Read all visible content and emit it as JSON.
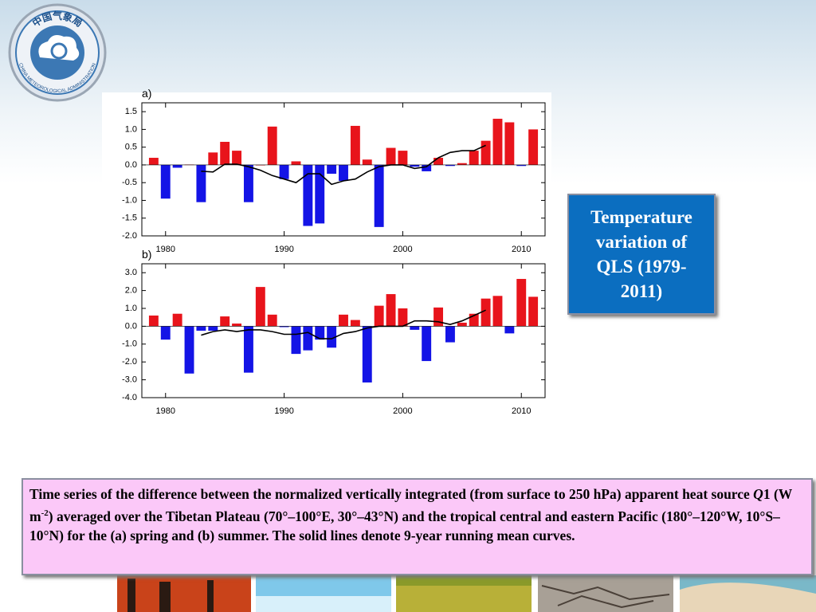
{
  "logo": {
    "top": "中国气象局",
    "bottom": "CHINA METEOROLOGICAL ADMINISTRATION"
  },
  "chart_data": [
    {
      "type": "bar",
      "label": "a)",
      "x": [
        1979,
        1980,
        1981,
        1982,
        1983,
        1984,
        1985,
        1986,
        1987,
        1988,
        1989,
        1990,
        1991,
        1992,
        1993,
        1994,
        1995,
        1996,
        1997,
        1998,
        1999,
        2000,
        2001,
        2002,
        2003,
        2004,
        2005,
        2006,
        2007,
        2008,
        2009,
        2010,
        2011
      ],
      "series": [
        {
          "type": "bar",
          "pos_color": "#e8141b",
          "neg_color": "#1414e6",
          "values": [
            0.2,
            -0.95,
            -0.08,
            0.01,
            -1.05,
            0.35,
            0.65,
            0.4,
            -1.05,
            0,
            1.08,
            -0.4,
            0.1,
            -1.72,
            -1.65,
            -0.25,
            -0.45,
            1.1,
            0.15,
            -1.75,
            0.48,
            0.4,
            -0.05,
            -0.18,
            0.2,
            -0.03,
            0.05,
            0.4,
            0.68,
            1.3,
            1.2,
            -0.03,
            1.0
          ]
        },
        {
          "type": "line",
          "color": "#000000",
          "values": [
            null,
            null,
            null,
            null,
            -0.18,
            -0.2,
            0.02,
            0.02,
            -0.05,
            -0.15,
            -0.3,
            -0.4,
            -0.5,
            -0.25,
            -0.25,
            -0.55,
            -0.45,
            -0.4,
            -0.2,
            -0.05,
            0.0,
            0.0,
            -0.1,
            -0.05,
            0.2,
            0.35,
            0.4,
            0.4,
            0.55,
            null,
            null,
            null,
            null
          ]
        }
      ],
      "xlim": [
        1978,
        2012
      ],
      "xticks": [
        1980,
        1990,
        2000,
        2010
      ],
      "ylim": [
        -2.0,
        1.75
      ],
      "yticks": [
        1.5,
        {
          "value": 1.0,
          "label": "1.0"
        },
        0.5,
        {
          "value": 0,
          "label": "0.0"
        },
        -0.5,
        {
          "value": -1.0,
          "label": "-1.0"
        },
        -1.5,
        {
          "value": -2.0,
          "label": "-2.0"
        }
      ]
    },
    {
      "type": "bar",
      "label": "b)",
      "x": [
        1979,
        1980,
        1981,
        1982,
        1983,
        1984,
        1985,
        1986,
        1987,
        1988,
        1989,
        1990,
        1991,
        1992,
        1993,
        1994,
        1995,
        1996,
        1997,
        1998,
        1999,
        2000,
        2001,
        2002,
        2003,
        2004,
        2005,
        2006,
        2007,
        2008,
        2009,
        2010,
        2011
      ],
      "series": [
        {
          "type": "bar",
          "pos_color": "#e8141b",
          "neg_color": "#1414e6",
          "values": [
            0.6,
            -0.75,
            0.7,
            -2.65,
            -0.25,
            -0.25,
            0.55,
            0.15,
            -2.6,
            2.2,
            0.65,
            -0.05,
            -1.55,
            -1.35,
            -0.75,
            -1.2,
            0.65,
            0.35,
            -3.15,
            1.15,
            1.8,
            1.0,
            -0.2,
            -1.95,
            1.05,
            -0.9,
            0.2,
            0.7,
            1.55,
            1.7,
            -0.4,
            2.65,
            1.65
          ]
        },
        {
          "type": "line",
          "color": "#000000",
          "values": [
            null,
            null,
            null,
            null,
            -0.5,
            -0.3,
            -0.2,
            -0.3,
            -0.2,
            -0.2,
            -0.3,
            -0.45,
            -0.45,
            -0.35,
            -0.7,
            -0.7,
            -0.4,
            -0.3,
            -0.1,
            0.0,
            0.0,
            0.0,
            0.3,
            0.3,
            0.25,
            0.1,
            0.3,
            0.6,
            0.9,
            null,
            null,
            null,
            null
          ]
        }
      ],
      "xlim": [
        1978,
        2012
      ],
      "xticks": [
        1980,
        1990,
        2000,
        2010
      ],
      "ylim": [
        -4.0,
        3.5
      ],
      "yticks": [
        {
          "value": 3.0,
          "label": "3.0"
        },
        {
          "value": 2.0,
          "label": "2.0"
        },
        {
          "value": 1.0,
          "label": "1.0"
        },
        {
          "value": 0,
          "label": "0.0"
        },
        {
          "value": -1.0,
          "label": "-1.0"
        },
        {
          "value": -2.0,
          "label": "-2.0"
        },
        {
          "value": -3.0,
          "label": "-3.0"
        },
        {
          "value": -4.0,
          "label": "-4.0"
        }
      ]
    }
  ],
  "side_note": "Temperature variation of QLS (1979-2011)",
  "caption": {
    "part1": "Time series of the difference between the normalized vertically integrated (from surface to 250 hPa) apparent heat source ",
    "symbol": "Q",
    "part2": "1 (W m",
    "exponent": "-2",
    "part3": ") averaged over the Tibetan Plateau (70°–100°E, 30°–43°N) and the tropical central and eastern Pacific (180°–120°W, 10°S–10°N) for the (a) spring and (b) summer. The solid lines denote 9-year running mean curves."
  }
}
